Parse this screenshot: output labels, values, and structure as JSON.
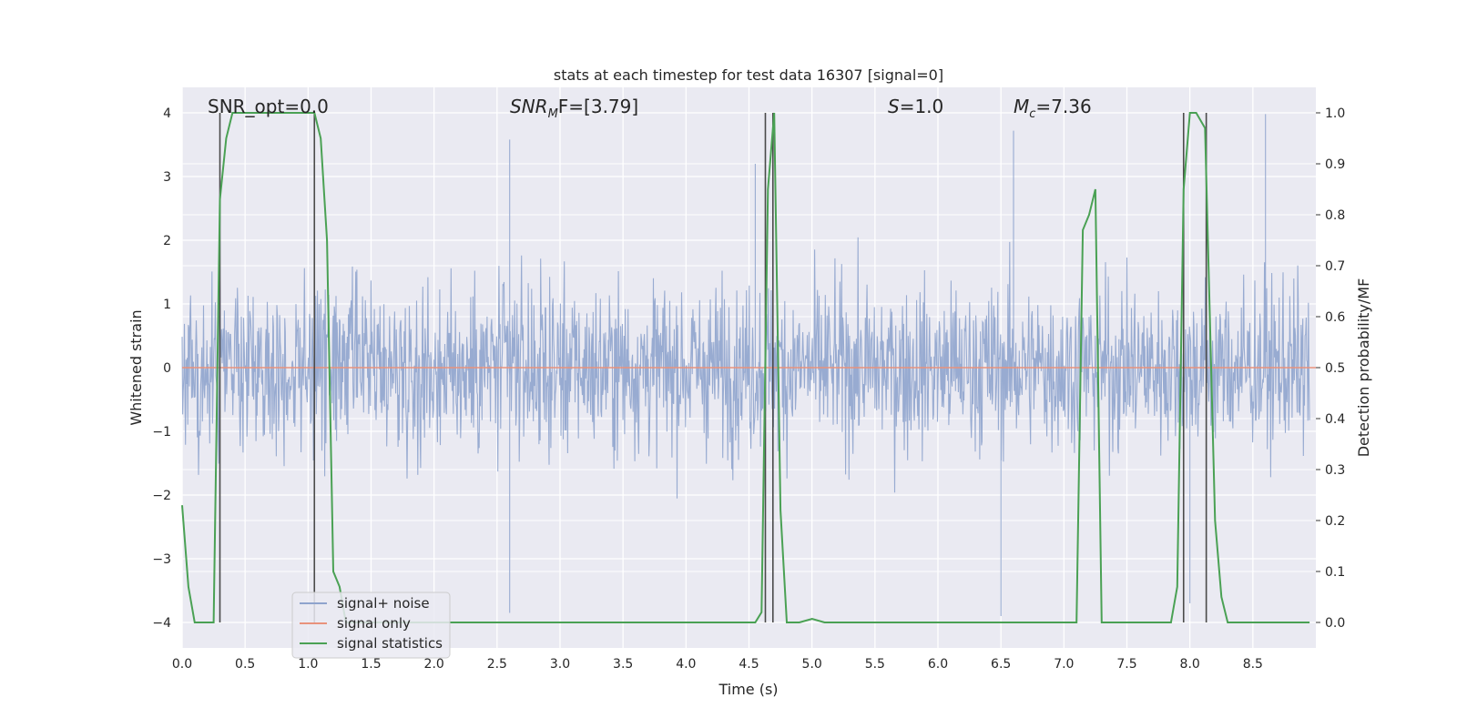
{
  "chart_data": {
    "type": "line",
    "title": "stats at each timestep for test data 16307 [signal=0]",
    "xlabel": "Time (s)",
    "ylabel_left": "Whitened strain",
    "ylabel_right": "Detection probability/MF",
    "xlim": [
      0.0,
      9.0
    ],
    "ylim_left": [
      -4.4,
      4.4
    ],
    "ylim_right": [
      -0.05,
      1.05
    ],
    "x_ticks": [
      "0.0",
      "0.5",
      "1.0",
      "1.5",
      "2.0",
      "2.5",
      "3.0",
      "3.5",
      "4.0",
      "4.5",
      "5.0",
      "5.5",
      "6.0",
      "6.5",
      "7.0",
      "7.5",
      "8.0",
      "8.5"
    ],
    "y_ticks_left": [
      "−4",
      "−3",
      "−2",
      "−1",
      "0",
      "1",
      "2",
      "3",
      "4"
    ],
    "y_ticks_right": [
      "0.0",
      "0.1",
      "0.2",
      "0.3",
      "0.4",
      "0.5",
      "0.6",
      "0.7",
      "0.8",
      "0.9",
      "1.0"
    ],
    "grid": true,
    "legend_position": "lower-left",
    "annotations": {
      "snr_opt": "SNR_opt=0.0",
      "snr_mf": "SNR_MF=[3.79]",
      "snr_mf_base": "SNR",
      "snr_mf_sub": "M",
      "snr_mf_rest": "F=[3.79]",
      "s_label": "S",
      "s_value": "=1.0",
      "mc_label": "M",
      "mc_sub": "c",
      "mc_value": "=7.36"
    },
    "series": [
      {
        "name": "signal+ noise",
        "color": "#8fa4cd",
        "style": "dense noise trace, roughly symmetric about 0",
        "typical_envelope": [
          -2.0,
          2.2
        ],
        "peak_spikes": [
          {
            "x": 2.6,
            "y": 3.58
          },
          {
            "x": 4.55,
            "y": 3.2
          },
          {
            "x": 6.6,
            "y": 3.72
          },
          {
            "x": 8.0,
            "y": -3.7
          },
          {
            "x": 8.6,
            "y": 3.98
          },
          {
            "x": 2.6,
            "y": -3.85
          },
          {
            "x": 6.5,
            "y": -3.9
          }
        ]
      },
      {
        "name": "signal only",
        "color": "#e8927c",
        "x": [
          0.0,
          9.0
        ],
        "y": [
          0.0,
          0.0
        ]
      },
      {
        "name": "signal statistics",
        "color": "#4aa154",
        "axis": "right",
        "x": [
          0.0,
          0.05,
          0.1,
          0.25,
          0.3,
          0.35,
          0.4,
          1.05,
          1.1,
          1.15,
          1.2,
          1.25,
          1.3,
          4.55,
          4.6,
          4.65,
          4.7,
          4.75,
          4.8,
          4.9,
          5.0,
          5.1,
          7.1,
          7.15,
          7.2,
          7.25,
          7.3,
          7.85,
          7.9,
          7.95,
          8.0,
          8.05,
          8.12,
          8.2,
          8.25,
          8.3,
          8.95
        ],
        "y": [
          0.23,
          0.07,
          0.0,
          0.0,
          0.83,
          0.95,
          1.0,
          1.0,
          0.95,
          0.75,
          0.1,
          0.07,
          0.0,
          0.0,
          0.02,
          0.85,
          1.0,
          0.22,
          0.0,
          0.0,
          0.007,
          0.0,
          0.0,
          0.77,
          0.8,
          0.85,
          0.0,
          0.0,
          0.07,
          0.85,
          1.0,
          1.0,
          0.97,
          0.2,
          0.05,
          0.0,
          0.0
        ]
      }
    ],
    "vertical_lines": [
      {
        "x": 0.3,
        "y_range": [
          0.0,
          1.0
        ]
      },
      {
        "x": 1.05,
        "y_range": [
          0.0,
          1.0
        ]
      },
      {
        "x": 4.63,
        "y_range": [
          0.0,
          1.0
        ]
      },
      {
        "x": 4.69,
        "y_range": [
          0.0,
          1.0
        ]
      },
      {
        "x": 7.95,
        "y_range": [
          0.0,
          1.0
        ]
      },
      {
        "x": 8.13,
        "y_range": [
          0.0,
          1.0
        ]
      }
    ]
  }
}
